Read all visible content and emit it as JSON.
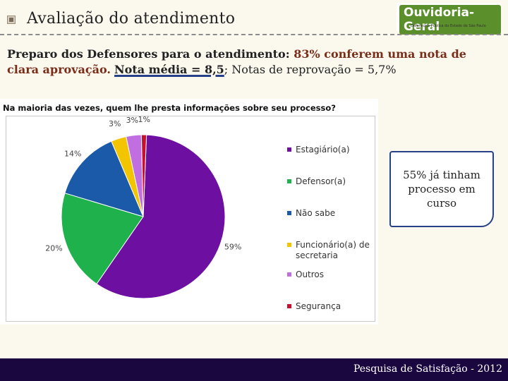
{
  "header": {
    "title": "Avaliação do atendimento",
    "logo": {
      "main": "Ouvidoria-Geral",
      "sub": "Defensoria Pública do Estado de São Paulo"
    }
  },
  "headline": {
    "p1": "Preparo dos Defensores para o atendimento: ",
    "p2": "83% conferem uma nota de clara aprovação.",
    "p3": " ",
    "p4": "Nota média = 8,5",
    "p5": "; Notas de reprovação = 5,7%"
  },
  "callout": {
    "text": "55% já tinham processo em curso"
  },
  "footer": {
    "text": "Pesquisa de Satisfação - 2012"
  },
  "chart_data": {
    "type": "pie",
    "title": "Na maioria das vezes, quem lhe presta informações sobre seu processo?",
    "legend_position": "right",
    "slices": [
      {
        "label": "Estagiário(a)",
        "value": 59,
        "display": "59%",
        "color": "#6d0fa0"
      },
      {
        "label": "Defensor(a)",
        "value": 20,
        "display": "20%",
        "color": "#1fb14c"
      },
      {
        "label": "Não sabe",
        "value": 14,
        "display": "14%",
        "color": "#1b5aa8"
      },
      {
        "label": "Funcionário(a) de secretaria",
        "value": 3,
        "display": "3%",
        "color": "#f2c500"
      },
      {
        "label": "Outros",
        "value": 3,
        "display": "3%",
        "color": "#c16fe0"
      },
      {
        "label": "Segurança",
        "value": 1,
        "display": "1%",
        "color": "#c8102e"
      }
    ]
  }
}
